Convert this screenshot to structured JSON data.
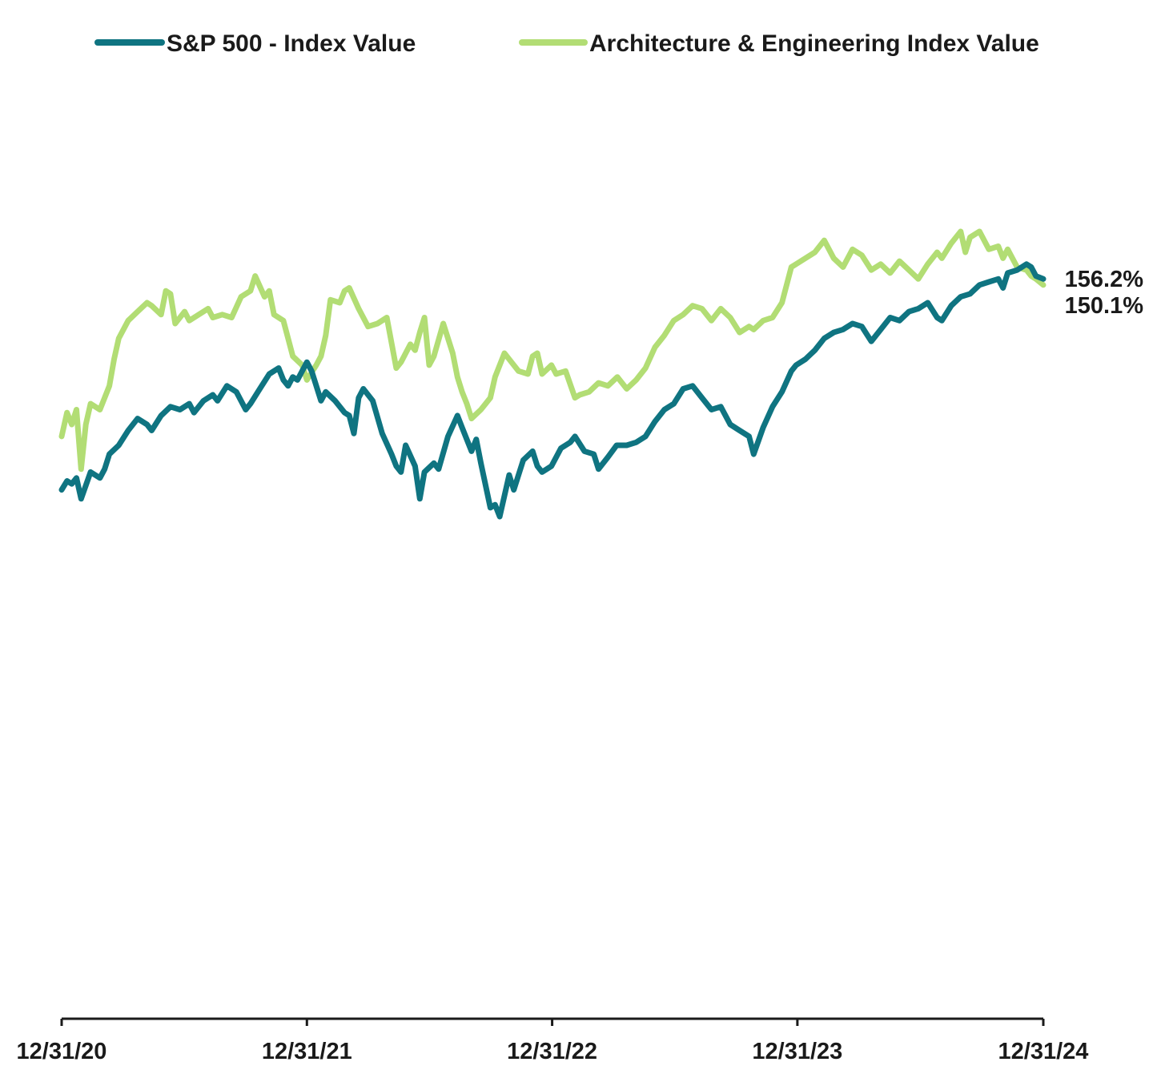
{
  "chart_data": {
    "type": "line",
    "title": "",
    "xlabel": "",
    "ylabel": "",
    "x_ticks": [
      "12/31/20",
      "12/31/21",
      "12/31/22",
      "12/31/23",
      "12/31/24"
    ],
    "x_range": [
      "2020-12-31",
      "2024-12-31"
    ],
    "y_axis": "not shown",
    "grid": false,
    "legend_position": "top",
    "series": [
      {
        "name": "S&P 500 - Index Value",
        "color": "#0f7481",
        "end_label": "150.1%",
        "points": [
          [
            "2020-12-31",
            91.0
          ],
          [
            "2021-01-08",
            92.5
          ],
          [
            "2021-01-15",
            92.0
          ],
          [
            "2021-01-22",
            93.0
          ],
          [
            "2021-01-29",
            89.5
          ],
          [
            "2021-02-12",
            94.0
          ],
          [
            "2021-02-26",
            93.0
          ],
          [
            "2021-03-05",
            94.5
          ],
          [
            "2021-03-12",
            97.0
          ],
          [
            "2021-03-26",
            98.5
          ],
          [
            "2021-04-09",
            101.0
          ],
          [
            "2021-04-23",
            103.0
          ],
          [
            "2021-05-07",
            102.0
          ],
          [
            "2021-05-14",
            101.0
          ],
          [
            "2021-05-28",
            103.5
          ],
          [
            "2021-06-11",
            105.0
          ],
          [
            "2021-06-25",
            104.5
          ],
          [
            "2021-07-09",
            105.5
          ],
          [
            "2021-07-16",
            104.0
          ],
          [
            "2021-07-30",
            106.0
          ],
          [
            "2021-08-13",
            107.0
          ],
          [
            "2021-08-20",
            106.0
          ],
          [
            "2021-09-03",
            108.5
          ],
          [
            "2021-09-17",
            107.5
          ],
          [
            "2021-10-01",
            104.5
          ],
          [
            "2021-10-08",
            105.5
          ],
          [
            "2021-10-22",
            108.0
          ],
          [
            "2021-11-05",
            110.5
          ],
          [
            "2021-11-19",
            111.5
          ],
          [
            "2021-11-26",
            109.5
          ],
          [
            "2021-12-03",
            108.5
          ],
          [
            "2021-12-10",
            110.0
          ],
          [
            "2021-12-17",
            109.5
          ],
          [
            "2021-12-31",
            112.5
          ],
          [
            "2022-01-07",
            111.0
          ],
          [
            "2022-01-21",
            106.0
          ],
          [
            "2022-01-28",
            107.5
          ],
          [
            "2022-02-11",
            106.0
          ],
          [
            "2022-02-25",
            104.0
          ],
          [
            "2022-03-04",
            103.5
          ],
          [
            "2022-03-11",
            100.5
          ],
          [
            "2022-03-18",
            106.5
          ],
          [
            "2022-03-25",
            108.0
          ],
          [
            "2022-04-08",
            106.0
          ],
          [
            "2022-04-22",
            100.5
          ],
          [
            "2022-05-06",
            97.0
          ],
          [
            "2022-05-13",
            95.0
          ],
          [
            "2022-05-20",
            94.0
          ],
          [
            "2022-05-27",
            98.5
          ],
          [
            "2022-06-10",
            95.0
          ],
          [
            "2022-06-17",
            89.5
          ],
          [
            "2022-06-24",
            94.0
          ],
          [
            "2022-07-08",
            95.5
          ],
          [
            "2022-07-15",
            94.5
          ],
          [
            "2022-07-29",
            100.0
          ],
          [
            "2022-08-12",
            103.5
          ],
          [
            "2022-08-19",
            101.5
          ],
          [
            "2022-09-02",
            97.5
          ],
          [
            "2022-09-09",
            99.5
          ],
          [
            "2022-09-16",
            95.5
          ],
          [
            "2022-09-30",
            88.0
          ],
          [
            "2022-10-07",
            88.5
          ],
          [
            "2022-10-14",
            86.5
          ],
          [
            "2022-10-28",
            93.5
          ],
          [
            "2022-11-04",
            91.0
          ],
          [
            "2022-11-18",
            96.0
          ],
          [
            "2022-12-02",
            97.5
          ],
          [
            "2022-12-09",
            95.0
          ],
          [
            "2022-12-16",
            94.0
          ],
          [
            "2022-12-30",
            95.0
          ],
          [
            "2023-01-13",
            98.0
          ],
          [
            "2023-01-27",
            99.0
          ],
          [
            "2023-02-03",
            100.0
          ],
          [
            "2023-02-17",
            97.5
          ],
          [
            "2023-03-03",
            97.0
          ],
          [
            "2023-03-10",
            94.5
          ],
          [
            "2023-03-24",
            96.5
          ],
          [
            "2023-04-06",
            98.5
          ],
          [
            "2023-04-21",
            98.5
          ],
          [
            "2023-05-05",
            99.0
          ],
          [
            "2023-05-19",
            100.0
          ],
          [
            "2023-06-02",
            102.5
          ],
          [
            "2023-06-16",
            104.5
          ],
          [
            "2023-06-30",
            105.5
          ],
          [
            "2023-07-14",
            108.0
          ],
          [
            "2023-07-28",
            108.5
          ],
          [
            "2023-08-11",
            106.5
          ],
          [
            "2023-08-25",
            104.5
          ],
          [
            "2023-09-08",
            105.0
          ],
          [
            "2023-09-22",
            102.0
          ],
          [
            "2023-10-06",
            101.0
          ],
          [
            "2023-10-20",
            100.0
          ],
          [
            "2023-10-27",
            97.0
          ],
          [
            "2023-11-10",
            101.5
          ],
          [
            "2023-11-24",
            105.0
          ],
          [
            "2023-12-08",
            107.5
          ],
          [
            "2023-12-22",
            111.0
          ],
          [
            "2023-12-29",
            112.0
          ],
          [
            "2024-01-12",
            113.0
          ],
          [
            "2024-01-26",
            114.5
          ],
          [
            "2024-02-09",
            116.5
          ],
          [
            "2024-02-23",
            117.5
          ],
          [
            "2024-03-08",
            118.0
          ],
          [
            "2024-03-22",
            119.0
          ],
          [
            "2024-04-05",
            118.5
          ],
          [
            "2024-04-19",
            116.0
          ],
          [
            "2024-05-03",
            118.0
          ],
          [
            "2024-05-17",
            120.0
          ],
          [
            "2024-05-31",
            119.5
          ],
          [
            "2024-06-14",
            121.0
          ],
          [
            "2024-06-28",
            121.5
          ],
          [
            "2024-07-12",
            122.5
          ],
          [
            "2024-07-26",
            120.0
          ],
          [
            "2024-08-02",
            119.5
          ],
          [
            "2024-08-16",
            122.0
          ],
          [
            "2024-08-30",
            123.5
          ],
          [
            "2024-09-13",
            124.0
          ],
          [
            "2024-09-27",
            125.5
          ],
          [
            "2024-10-11",
            126.0
          ],
          [
            "2024-10-25",
            126.5
          ],
          [
            "2024-11-01",
            125.0
          ],
          [
            "2024-11-08",
            127.5
          ],
          [
            "2024-11-22",
            128.0
          ],
          [
            "2024-12-06",
            129.0
          ],
          [
            "2024-12-13",
            128.5
          ],
          [
            "2024-12-20",
            127.0
          ],
          [
            "2024-12-31",
            126.5
          ]
        ]
      },
      {
        "name": "Architecture & Engineering Index Value",
        "color": "#b2dd74",
        "end_label": "156.2%",
        "points": [
          [
            "2020-12-31",
            100.0
          ],
          [
            "2021-01-08",
            104.0
          ],
          [
            "2021-01-15",
            102.0
          ],
          [
            "2021-01-22",
            104.5
          ],
          [
            "2021-01-29",
            94.5
          ],
          [
            "2021-02-05",
            102.0
          ],
          [
            "2021-02-12",
            105.5
          ],
          [
            "2021-02-26",
            104.5
          ],
          [
            "2021-03-12",
            108.5
          ],
          [
            "2021-03-19",
            113.0
          ],
          [
            "2021-03-26",
            116.5
          ],
          [
            "2021-04-09",
            119.5
          ],
          [
            "2021-04-23",
            121.0
          ],
          [
            "2021-05-07",
            122.5
          ],
          [
            "2021-05-14",
            122.0
          ],
          [
            "2021-05-28",
            120.5
          ],
          [
            "2021-06-04",
            124.5
          ],
          [
            "2021-06-11",
            124.0
          ],
          [
            "2021-06-18",
            119.0
          ],
          [
            "2021-07-02",
            121.0
          ],
          [
            "2021-07-09",
            119.5
          ],
          [
            "2021-07-23",
            120.5
          ],
          [
            "2021-08-06",
            121.5
          ],
          [
            "2021-08-13",
            120.0
          ],
          [
            "2021-08-27",
            120.5
          ],
          [
            "2021-09-10",
            120.0
          ],
          [
            "2021-09-24",
            123.5
          ],
          [
            "2021-10-08",
            124.5
          ],
          [
            "2021-10-15",
            127.0
          ],
          [
            "2021-10-29",
            123.5
          ],
          [
            "2021-11-05",
            124.5
          ],
          [
            "2021-11-12",
            120.5
          ],
          [
            "2021-11-26",
            119.5
          ],
          [
            "2021-12-03",
            116.5
          ],
          [
            "2021-12-10",
            113.5
          ],
          [
            "2021-12-24",
            112.0
          ],
          [
            "2021-12-31",
            109.5
          ],
          [
            "2022-01-14",
            112.0
          ],
          [
            "2022-01-21",
            113.5
          ],
          [
            "2022-01-28",
            117.0
          ],
          [
            "2022-02-04",
            123.0
          ],
          [
            "2022-02-18",
            122.5
          ],
          [
            "2022-02-25",
            124.5
          ],
          [
            "2022-03-04",
            125.0
          ],
          [
            "2022-03-18",
            121.5
          ],
          [
            "2022-04-01",
            118.5
          ],
          [
            "2022-04-15",
            119.0
          ],
          [
            "2022-04-29",
            120.0
          ],
          [
            "2022-05-13",
            111.5
          ],
          [
            "2022-05-20",
            112.5
          ],
          [
            "2022-06-03",
            115.5
          ],
          [
            "2022-06-10",
            114.5
          ],
          [
            "2022-06-17",
            117.5
          ],
          [
            "2022-06-24",
            120.0
          ],
          [
            "2022-07-01",
            112.0
          ],
          [
            "2022-07-08",
            113.5
          ],
          [
            "2022-07-22",
            119.0
          ],
          [
            "2022-08-05",
            114.0
          ],
          [
            "2022-08-12",
            110.0
          ],
          [
            "2022-08-19",
            107.5
          ],
          [
            "2022-08-26",
            105.5
          ],
          [
            "2022-09-02",
            103.0
          ],
          [
            "2022-09-16",
            104.5
          ],
          [
            "2022-09-30",
            106.5
          ],
          [
            "2022-10-07",
            110.0
          ],
          [
            "2022-10-21",
            114.0
          ],
          [
            "2022-11-04",
            112.0
          ],
          [
            "2022-11-11",
            111.0
          ],
          [
            "2022-11-25",
            110.5
          ],
          [
            "2022-12-02",
            113.5
          ],
          [
            "2022-12-09",
            114.0
          ],
          [
            "2022-12-16",
            110.5
          ],
          [
            "2022-12-30",
            112.0
          ],
          [
            "2023-01-06",
            110.5
          ],
          [
            "2023-01-20",
            111.0
          ],
          [
            "2023-02-03",
            106.5
          ],
          [
            "2023-02-10",
            107.0
          ],
          [
            "2023-02-24",
            107.5
          ],
          [
            "2023-03-10",
            109.0
          ],
          [
            "2023-03-24",
            108.5
          ],
          [
            "2023-04-07",
            110.0
          ],
          [
            "2023-04-21",
            108.0
          ],
          [
            "2023-05-05",
            109.5
          ],
          [
            "2023-05-19",
            111.5
          ],
          [
            "2023-06-02",
            115.0
          ],
          [
            "2023-06-16",
            117.0
          ],
          [
            "2023-06-30",
            119.5
          ],
          [
            "2023-07-14",
            120.5
          ],
          [
            "2023-07-28",
            122.0
          ],
          [
            "2023-08-11",
            121.5
          ],
          [
            "2023-08-25",
            119.5
          ],
          [
            "2023-09-08",
            121.5
          ],
          [
            "2023-09-22",
            120.0
          ],
          [
            "2023-10-06",
            117.5
          ],
          [
            "2023-10-20",
            118.5
          ],
          [
            "2023-10-27",
            118.0
          ],
          [
            "2023-11-10",
            119.5
          ],
          [
            "2023-11-24",
            120.0
          ],
          [
            "2023-12-08",
            122.5
          ],
          [
            "2023-12-22",
            128.5
          ],
          [
            "2023-12-29",
            129.0
          ],
          [
            "2024-01-12",
            130.0
          ],
          [
            "2024-01-26",
            131.0
          ],
          [
            "2024-02-09",
            133.0
          ],
          [
            "2024-02-23",
            130.0
          ],
          [
            "2024-03-08",
            128.5
          ],
          [
            "2024-03-22",
            131.5
          ],
          [
            "2024-04-05",
            130.5
          ],
          [
            "2024-04-19",
            128.0
          ],
          [
            "2024-05-03",
            129.0
          ],
          [
            "2024-05-17",
            127.5
          ],
          [
            "2024-05-31",
            129.5
          ],
          [
            "2024-06-14",
            128.0
          ],
          [
            "2024-06-28",
            126.5
          ],
          [
            "2024-07-12",
            129.0
          ],
          [
            "2024-07-26",
            131.0
          ],
          [
            "2024-08-02",
            130.0
          ],
          [
            "2024-08-16",
            132.5
          ],
          [
            "2024-08-30",
            134.5
          ],
          [
            "2024-09-06",
            131.0
          ],
          [
            "2024-09-13",
            133.5
          ],
          [
            "2024-09-27",
            134.5
          ],
          [
            "2024-10-11",
            131.5
          ],
          [
            "2024-10-25",
            132.0
          ],
          [
            "2024-11-01",
            130.0
          ],
          [
            "2024-11-08",
            131.5
          ],
          [
            "2024-11-22",
            128.5
          ],
          [
            "2024-12-06",
            128.0
          ],
          [
            "2024-12-13",
            127.0
          ],
          [
            "2024-12-20",
            126.5
          ],
          [
            "2024-12-31",
            125.5
          ]
        ]
      }
    ]
  }
}
